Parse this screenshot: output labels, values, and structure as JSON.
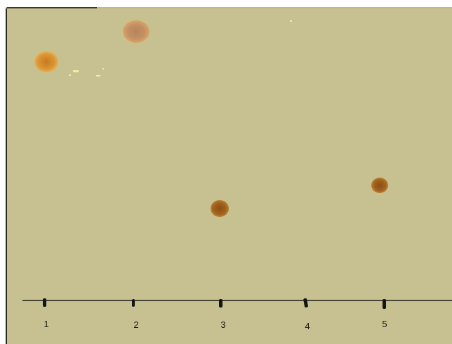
{
  "plate": {
    "background": "#c7c192",
    "baseline_color": "#1b1b12"
  },
  "lanes": [
    {
      "label": "1",
      "spot": {
        "color": "#d48a2a"
      }
    },
    {
      "label": "2",
      "spot": {
        "color": "#c08a55"
      }
    },
    {
      "label": "3",
      "spot": {
        "color": "#9a5a1e"
      }
    },
    {
      "label": "4",
      "spot": null
    },
    {
      "label": "5",
      "spot": {
        "color": "#a0621f"
      }
    }
  ]
}
